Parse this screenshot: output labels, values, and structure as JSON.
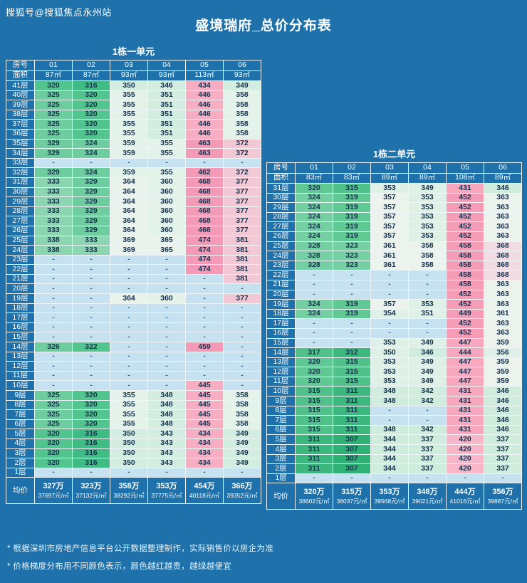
{
  "page": {
    "watermark": "搜狐号@搜狐焦点永州站",
    "title": "盛境瑞府_总价分布表",
    "footnotes": [
      "* 根据深圳市房地产信息平台公开数据整理制作，实际销售价以房企为准",
      "* 价格梯度分布用不同颜色表示，颜色越红越贵，越绿越便宜"
    ],
    "colors": {
      "background": "#1e71aa",
      "border": "#ffffff",
      "header_text": "#ffffff",
      "value_text": "#16324f",
      "empty_bg": "#c6e2f0",
      "empty_text": "#2a628f"
    }
  },
  "chart_data": [
    {
      "type": "heatmap",
      "title": "1栋一单元",
      "corner_label": "房号",
      "area_row_label": "面积",
      "avg_row_label": "均价",
      "empty_marker": "-",
      "columns": [
        "01",
        "02",
        "03",
        "04",
        "05",
        "06"
      ],
      "areas": [
        "87㎡",
        "87㎡",
        "93㎡",
        "93㎡",
        "113㎡",
        "93㎡"
      ],
      "floors": [
        "41层",
        "40层",
        "39层",
        "38层",
        "37层",
        "36层",
        "35层",
        "34层",
        "33层",
        "32层",
        "31层",
        "30层",
        "29层",
        "28层",
        "27层",
        "26层",
        "25层",
        "24层",
        "23层",
        "22层",
        "21层",
        "20层",
        "19层",
        "18层",
        "17层",
        "16层",
        "15层",
        "14层",
        "13层",
        "12层",
        "11层",
        "10层",
        "9层",
        "8层",
        "7层",
        "6层",
        "5层",
        "4层",
        "3层",
        "2层",
        "1层"
      ],
      "values": [
        [
          320,
          316,
          350,
          346,
          434,
          349
        ],
        [
          325,
          320,
          355,
          351,
          446,
          358
        ],
        [
          325,
          320,
          355,
          351,
          446,
          358
        ],
        [
          325,
          320,
          355,
          351,
          446,
          358
        ],
        [
          325,
          320,
          355,
          351,
          446,
          358
        ],
        [
          325,
          320,
          355,
          351,
          446,
          358
        ],
        [
          329,
          324,
          359,
          355,
          463,
          372
        ],
        [
          329,
          324,
          359,
          355,
          463,
          372
        ],
        [
          null,
          null,
          null,
          null,
          null,
          null
        ],
        [
          329,
          324,
          359,
          355,
          462,
          372
        ],
        [
          333,
          329,
          364,
          360,
          468,
          377
        ],
        [
          333,
          329,
          364,
          360,
          468,
          377
        ],
        [
          333,
          329,
          364,
          360,
          468,
          377
        ],
        [
          333,
          329,
          364,
          360,
          468,
          377
        ],
        [
          333,
          329,
          364,
          360,
          468,
          377
        ],
        [
          333,
          329,
          364,
          360,
          468,
          377
        ],
        [
          338,
          333,
          369,
          365,
          474,
          381
        ],
        [
          338,
          333,
          369,
          365,
          474,
          381
        ],
        [
          null,
          null,
          null,
          null,
          474,
          381
        ],
        [
          null,
          null,
          null,
          null,
          474,
          381
        ],
        [
          null,
          null,
          null,
          null,
          null,
          381
        ],
        [
          null,
          null,
          null,
          null,
          null,
          null
        ],
        [
          null,
          null,
          364,
          360,
          null,
          377
        ],
        [
          null,
          null,
          null,
          null,
          null,
          null
        ],
        [
          null,
          null,
          null,
          null,
          null,
          null
        ],
        [
          null,
          null,
          null,
          null,
          null,
          null
        ],
        [
          null,
          null,
          null,
          null,
          null,
          null
        ],
        [
          326,
          322,
          null,
          null,
          459,
          null
        ],
        [
          null,
          null,
          null,
          null,
          null,
          null
        ],
        [
          null,
          null,
          null,
          null,
          null,
          null
        ],
        [
          null,
          null,
          null,
          null,
          null,
          null
        ],
        [
          null,
          null,
          null,
          null,
          445,
          null
        ],
        [
          325,
          320,
          355,
          348,
          445,
          358
        ],
        [
          325,
          320,
          355,
          348,
          445,
          358
        ],
        [
          325,
          320,
          355,
          348,
          445,
          358
        ],
        [
          325,
          320,
          355,
          348,
          445,
          358
        ],
        [
          320,
          316,
          350,
          343,
          434,
          349
        ],
        [
          320,
          316,
          350,
          343,
          434,
          349
        ],
        [
          320,
          316,
          350,
          343,
          434,
          349
        ],
        [
          320,
          316,
          350,
          343,
          434,
          349
        ],
        [
          null,
          null,
          null,
          null,
          null,
          null
        ]
      ],
      "avg_totals": [
        "327万",
        "323万",
        "358万",
        "353万",
        "454万",
        "366万"
      ],
      "avg_units": [
        "37697元/㎡",
        "37132元/㎡",
        "38292元/㎡",
        "37775元/㎡",
        "40118元/㎡",
        "39352元/㎡"
      ],
      "price_scale": [
        {
          "max": 317,
          "color": "#3fbc83"
        },
        {
          "max": 322,
          "color": "#52c48d"
        },
        {
          "max": 329,
          "color": "#6ecd9e"
        },
        {
          "max": 340,
          "color": "#8bd6b0"
        },
        {
          "max": 352,
          "color": "#d3eee1"
        },
        {
          "max": 360,
          "color": "#e3f3ea"
        },
        {
          "max": 371,
          "color": "#eaf2ec"
        },
        {
          "max": 385,
          "color": "#f2c8d5"
        },
        {
          "max": 455,
          "color": "#f7aec3"
        },
        {
          "max": 999,
          "color": "#f49ab6"
        }
      ]
    },
    {
      "type": "heatmap",
      "title": "1栋二单元",
      "corner_label": "房号",
      "area_row_label": "面积",
      "avg_row_label": "均价",
      "empty_marker": "-",
      "columns": [
        "01",
        "02",
        "03",
        "04",
        "05",
        "06"
      ],
      "areas": [
        "83㎡",
        "83㎡",
        "89㎡",
        "89㎡",
        "108㎡",
        "89㎡"
      ],
      "floors": [
        "31层",
        "30层",
        "29层",
        "28层",
        "27层",
        "26层",
        "25层",
        "24层",
        "23层",
        "22层",
        "21层",
        "20层",
        "19层",
        "18层",
        "17层",
        "16层",
        "15层",
        "14层",
        "13层",
        "12层",
        "11层",
        "10层",
        "9层",
        "8层",
        "7层",
        "6层",
        "5层",
        "4层",
        "3层",
        "2层",
        "1层"
      ],
      "values": [
        [
          320,
          315,
          353,
          349,
          431,
          346
        ],
        [
          324,
          319,
          357,
          353,
          452,
          363
        ],
        [
          324,
          319,
          357,
          353,
          452,
          363
        ],
        [
          324,
          319,
          357,
          353,
          452,
          363
        ],
        [
          324,
          319,
          357,
          353,
          452,
          363
        ],
        [
          324,
          319,
          357,
          353,
          452,
          363
        ],
        [
          328,
          323,
          361,
          358,
          458,
          368
        ],
        [
          328,
          323,
          361,
          358,
          458,
          368
        ],
        [
          328,
          323,
          361,
          358,
          458,
          368
        ],
        [
          null,
          null,
          null,
          null,
          458,
          368
        ],
        [
          null,
          null,
          null,
          null,
          458,
          363
        ],
        [
          null,
          null,
          null,
          null,
          452,
          363
        ],
        [
          324,
          319,
          357,
          353,
          452,
          363
        ],
        [
          324,
          319,
          354,
          351,
          449,
          361
        ],
        [
          null,
          null,
          null,
          null,
          452,
          363
        ],
        [
          null,
          null,
          null,
          null,
          452,
          363
        ],
        [
          null,
          null,
          353,
          349,
          447,
          359
        ],
        [
          317,
          312,
          350,
          346,
          444,
          356
        ],
        [
          320,
          315,
          353,
          349,
          447,
          359
        ],
        [
          320,
          315,
          353,
          349,
          447,
          359
        ],
        [
          320,
          315,
          353,
          349,
          447,
          359
        ],
        [
          315,
          311,
          348,
          342,
          431,
          346
        ],
        [
          315,
          311,
          348,
          342,
          431,
          346
        ],
        [
          315,
          311,
          null,
          null,
          431,
          346
        ],
        [
          315,
          311,
          null,
          null,
          431,
          346
        ],
        [
          315,
          311,
          348,
          342,
          431,
          346
        ],
        [
          311,
          307,
          344,
          337,
          420,
          337
        ],
        [
          311,
          307,
          344,
          337,
          420,
          337
        ],
        [
          311,
          307,
          344,
          337,
          420,
          337
        ],
        [
          311,
          307,
          344,
          337,
          420,
          337
        ],
        [
          null,
          null,
          null,
          null,
          null,
          null
        ]
      ],
      "avg_totals": [
        "320万",
        "315万",
        "353万",
        "348万",
        "444万",
        "356万"
      ],
      "avg_units": [
        "38602元/㎡",
        "38037元/㎡",
        "39568元/㎡",
        "39021元/㎡",
        "41016元/㎡",
        "39887元/㎡"
      ],
      "price_scale": [
        {
          "max": 308,
          "color": "#2fb176"
        },
        {
          "max": 312,
          "color": "#3cb87e"
        },
        {
          "max": 317,
          "color": "#4fc189"
        },
        {
          "max": 322,
          "color": "#5fc893"
        },
        {
          "max": 330,
          "color": "#74d0a2"
        },
        {
          "max": 348,
          "color": "#cfecdd"
        },
        {
          "max": 356,
          "color": "#dff1e6"
        },
        {
          "max": 366,
          "color": "#ecf2ec"
        },
        {
          "max": 372,
          "color": "#f2dce3"
        },
        {
          "max": 430,
          "color": "#f8b6c9"
        },
        {
          "max": 448,
          "color": "#f7a8bf"
        },
        {
          "max": 999,
          "color": "#f59cb6"
        }
      ]
    }
  ]
}
